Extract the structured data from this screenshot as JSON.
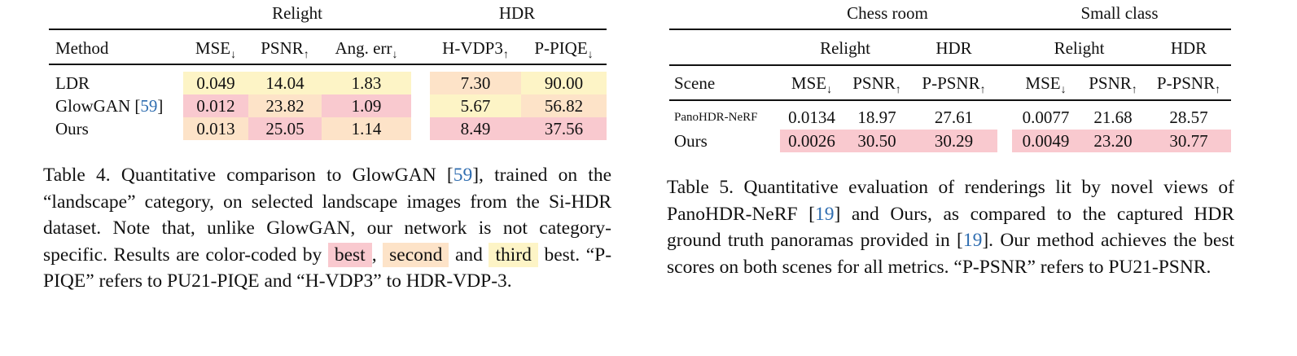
{
  "table4": {
    "groups": {
      "relight": "Relight",
      "hdr": "HDR"
    },
    "headers": {
      "method": "Method",
      "mse": "MSE",
      "mse_arrow": "↓",
      "psnr": "PSNR",
      "psnr_arrow": "↑",
      "ang": "Ang. err",
      "ang_arrow": "↓",
      "hvdp": "H-VDP3",
      "hvdp_arrow": "↑",
      "ppiqe": "P-PIQE",
      "ppiqe_arrow": "↓"
    },
    "rows": [
      {
        "method": "LDR",
        "cite": "",
        "mse": "0.049",
        "psnr": "14.04",
        "ang": "1.83",
        "hvdp": "7.30",
        "ppiqe": "90.00"
      },
      {
        "method": "GlowGAN [",
        "cite": "59",
        "cite_close": "]",
        "mse": "0.012",
        "psnr": "23.82",
        "ang": "1.09",
        "hvdp": "5.67",
        "ppiqe": "56.82"
      },
      {
        "method": "Ours",
        "cite": "",
        "mse": "0.013",
        "psnr": "25.05",
        "ang": "1.14",
        "hvdp": "8.49",
        "ppiqe": "37.56"
      }
    ],
    "caption": {
      "label": "Table 4.",
      "p1": "Quantitative comparison to GlowGAN [",
      "cite": "59",
      "p2": "], trained on the “landscape” category, on selected landscape images from the Si-HDR dataset. Note that, unlike GlowGAN, our network is not category-specific. Results are color-coded by",
      "best": "best",
      "comma": ",",
      "second": "second",
      "and": "and",
      "third": "third",
      "p3": "best. “P-PIQE” refers to PU21-PIQE and “H-VDP3” to HDR-VDP-3."
    }
  },
  "table5": {
    "scenes": {
      "chess": "Chess room",
      "small": "Small class"
    },
    "subgroups": {
      "relight1": "Relight",
      "hdr1": "HDR",
      "relight2": "Relight",
      "hdr2": "HDR"
    },
    "headers": {
      "scene": "Scene",
      "mse": "MSE",
      "mse_arrow": "↓",
      "psnr": "PSNR",
      "psnr_arrow": "↑",
      "ppsnr": "P-PSNR",
      "ppsnr_arrow": "↑"
    },
    "rows": [
      {
        "scene": "PanoHDR-NeRF",
        "c_mse": "0.0134",
        "c_psnr": "18.97",
        "c_ppsnr": "27.61",
        "s_mse": "0.0077",
        "s_psnr": "21.68",
        "s_ppsnr": "28.57"
      },
      {
        "scene": "Ours",
        "c_mse": "0.0026",
        "c_psnr": "30.50",
        "c_ppsnr": "30.29",
        "s_mse": "0.0049",
        "s_psnr": "23.20",
        "s_ppsnr": "30.77"
      }
    ],
    "caption": {
      "label": "Table 5.",
      "p1": "Quantitative evaluation of renderings lit by novel views of PanoHDR-NeRF [",
      "cite1": "19",
      "p2": "] and Ours, as compared to the captured HDR ground truth panoramas provided in [",
      "cite2": "19",
      "p3": "]. Our method achieves the best scores on both scenes for all metrics. “P-PSNR” refers to PU21-PSNR."
    }
  },
  "colors": {
    "best": "#f9c9cf",
    "second": "#fde3c8",
    "third": "#fdf4c6",
    "cite": "#2f6db0"
  }
}
